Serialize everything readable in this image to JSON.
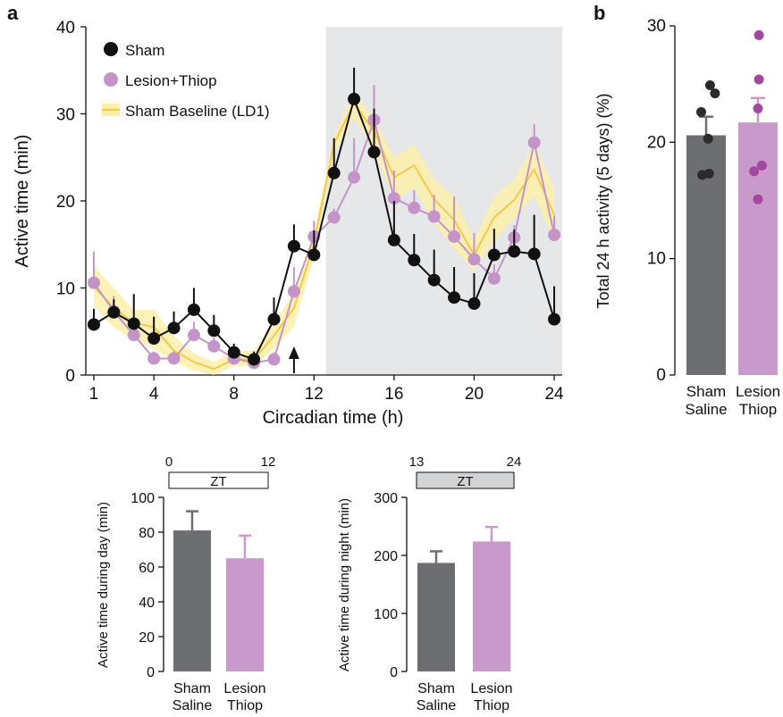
{
  "panels": {
    "a": "a",
    "b": "b"
  },
  "colors": {
    "sham": "#111111",
    "lesion": "#c494c9",
    "baseline": "#f2c94c",
    "baseline_band": "#fbefa9",
    "night_shade": "#e6e7e8",
    "bar_sham": "#6d6e71",
    "bar_lesion": "#c999cc",
    "dot_sham": "#2b2b2b",
    "dot_lesion": "#a3489e"
  },
  "chart_data": [
    {
      "id": "a-main",
      "type": "line",
      "xlabel": "Circadian time (h)",
      "ylabel": "Active time (min)",
      "xlim": [
        0.6,
        24.4
      ],
      "ylim": [
        0,
        40
      ],
      "xticks": [
        1,
        4,
        8,
        12,
        16,
        20,
        24
      ],
      "yticks": [
        0,
        10,
        20,
        30,
        40
      ],
      "night_shade": [
        12.6,
        24.4
      ],
      "arrow_at": 11,
      "legend": [
        "Sham",
        "Lesion+Thiop",
        "Sham Baseline (LD1)"
      ],
      "series": [
        {
          "name": "Sham",
          "x": [
            1,
            2,
            3,
            4,
            5,
            6,
            7,
            8,
            9,
            10,
            11,
            12,
            13,
            14,
            15,
            16,
            17,
            18,
            19,
            20,
            21,
            22,
            23,
            24
          ],
          "y": [
            5.8,
            7.2,
            5.9,
            4.2,
            5.4,
            7.5,
            5.1,
            2.6,
            1.8,
            6.4,
            14.8,
            13.8,
            23.2,
            31.7,
            25.6,
            15.5,
            13.2,
            10.9,
            8.9,
            8.2,
            13.8,
            14.2,
            13.9,
            6.4
          ],
          "err": [
            1.8,
            1.5,
            3.4,
            2.5,
            1.9,
            2.5,
            1.8,
            1.0,
            0.9,
            2.5,
            2.5,
            2.8,
            4.0,
            3.6,
            5.0,
            4.5,
            3.0,
            3.5,
            3.5,
            3.5,
            3.0,
            2.5,
            4.5,
            3.8
          ]
        },
        {
          "name": "Lesion+Thiop",
          "x": [
            1,
            2,
            3,
            4,
            5,
            6,
            7,
            8,
            9,
            10,
            11,
            12,
            13,
            14,
            15,
            16,
            17,
            18,
            19,
            20,
            21,
            22,
            23,
            24
          ],
          "y": [
            10.6,
            7.3,
            4.6,
            1.9,
            1.9,
            4.6,
            3.3,
            1.9,
            1.4,
            1.8,
            9.6,
            15.9,
            18.1,
            22.7,
            29.3,
            20.3,
            19.2,
            18.2,
            15.9,
            13.3,
            11.1,
            15.8,
            26.7,
            16.1
          ],
          "err": [
            3.6,
            1.8,
            1.0,
            0.8,
            0.8,
            1.5,
            1.0,
            0.8,
            0.7,
            0.8,
            2.8,
            1.8,
            1.0,
            4.5,
            4.0,
            3.2,
            2.0,
            2.5,
            4.6,
            3.0,
            1.6,
            1.4,
            2.1,
            2.2
          ]
        },
        {
          "name": "Sham Baseline (LD1)",
          "x": [
            1,
            2,
            3,
            4,
            5,
            6,
            7,
            8,
            9,
            10,
            11,
            12,
            13,
            14,
            15,
            16,
            17,
            18,
            19,
            20,
            21,
            22,
            23,
            24
          ],
          "y": [
            10.2,
            7.7,
            6.0,
            5.5,
            2.8,
            1.5,
            0.7,
            1.8,
            1.8,
            4.5,
            7.7,
            15.1,
            26.6,
            31.2,
            28.0,
            22.7,
            24.1,
            20.2,
            17.8,
            13.8,
            18.1,
            20.1,
            23.6,
            18.4
          ],
          "lo": [
            8.0,
            5.5,
            4.0,
            3.0,
            1.5,
            0.5,
            0.0,
            1.0,
            1.0,
            3.0,
            5.5,
            13.5,
            25.5,
            29.5,
            26.0,
            20.0,
            21.5,
            17.5,
            14.5,
            12.0,
            15.5,
            18.0,
            20.5,
            15.5
          ],
          "hi": [
            12.5,
            10.0,
            7.5,
            7.5,
            4.5,
            2.5,
            1.5,
            2.8,
            2.8,
            6.0,
            9.5,
            16.5,
            27.5,
            32.5,
            29.5,
            25.0,
            26.5,
            22.5,
            20.5,
            15.5,
            20.5,
            22.5,
            26.5,
            21.5
          ]
        }
      ]
    },
    {
      "id": "a-day",
      "type": "bar",
      "categories": [
        [
          "Sham",
          "Saline"
        ],
        [
          "Lesion",
          "Thiop"
        ]
      ],
      "values": [
        81,
        65
      ],
      "err": [
        11,
        13
      ],
      "ylabel": "Active time during day (min)",
      "ylim": [
        0,
        100
      ],
      "yticks": [
        0,
        20,
        40,
        60,
        80,
        100
      ],
      "zt_box": {
        "label": "ZT",
        "start": "0",
        "end": "12"
      }
    },
    {
      "id": "a-night",
      "type": "bar",
      "categories": [
        [
          "Sham",
          "Saline"
        ],
        [
          "Lesion",
          "Thiop"
        ]
      ],
      "values": [
        187,
        224
      ],
      "err": [
        20,
        25
      ],
      "ylabel": "Active time during night (min)",
      "ylim": [
        0,
        300
      ],
      "yticks": [
        0,
        100,
        200,
        300
      ],
      "zt_box": {
        "label": "ZT",
        "start": "13",
        "end": "24"
      }
    },
    {
      "id": "b",
      "type": "bar",
      "categories": [
        [
          "Sham",
          "Saline"
        ],
        [
          "Lesion",
          "Thiop"
        ]
      ],
      "values": [
        20.6,
        21.7
      ],
      "err": [
        1.6,
        2.1
      ],
      "points": [
        [
          24.9,
          24.2,
          22.6,
          20.3,
          17.2,
          17.3
        ],
        [
          29.2,
          25.4,
          22.9,
          17.5,
          18.0,
          15.1
        ]
      ],
      "ylabel": "Total 24 h activity (5 days) (%)",
      "ylim": [
        0,
        30
      ],
      "yticks": [
        0,
        10,
        20,
        30
      ]
    }
  ]
}
